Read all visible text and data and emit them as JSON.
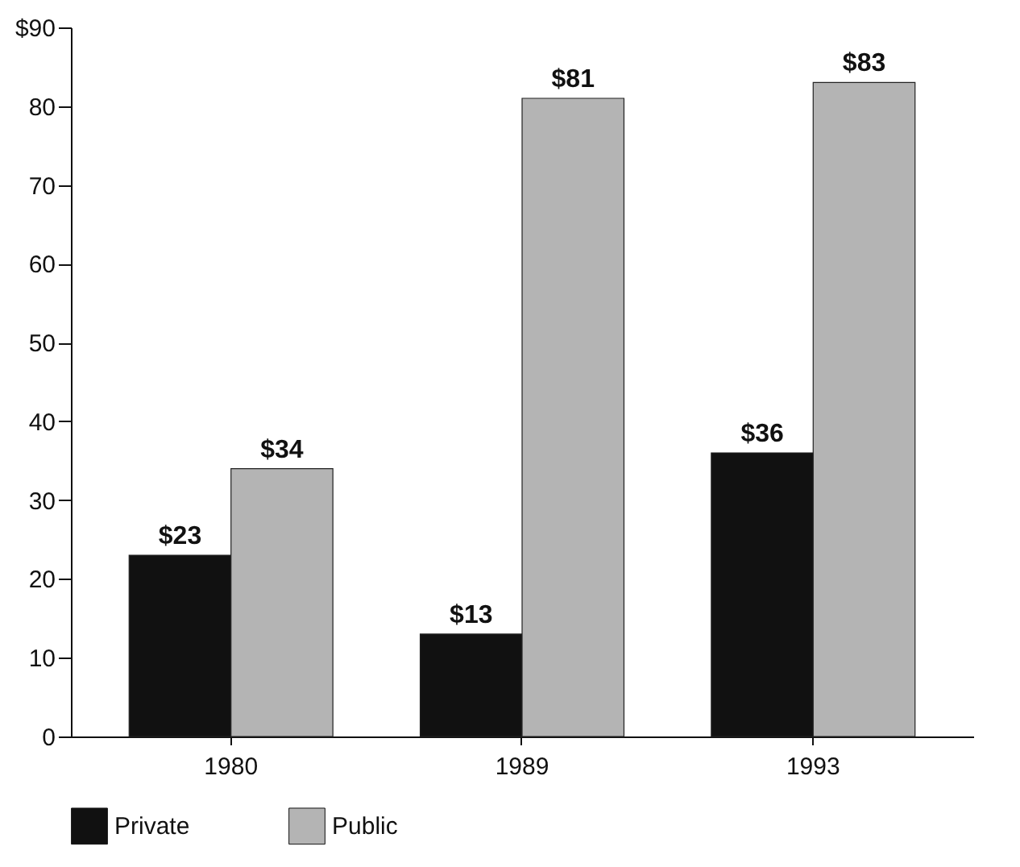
{
  "chart_data": {
    "type": "bar",
    "categories": [
      "1980",
      "1989",
      "1993"
    ],
    "series": [
      {
        "name": "Private",
        "color": "#111111",
        "values": [
          23,
          13,
          36
        ],
        "value_labels": [
          "$23",
          "$13",
          "$36"
        ]
      },
      {
        "name": "Public",
        "color": "#b4b4b4",
        "values": [
          34,
          81,
          83
        ],
        "value_labels": [
          "$34",
          "$81",
          "$83"
        ]
      }
    ],
    "ylim": [
      0,
      90
    ],
    "yticks": [
      0,
      10,
      20,
      30,
      40,
      50,
      60,
      70,
      80,
      {
        "value": 90,
        "label": "$90"
      }
    ],
    "grid": false,
    "legend": "bottom"
  }
}
